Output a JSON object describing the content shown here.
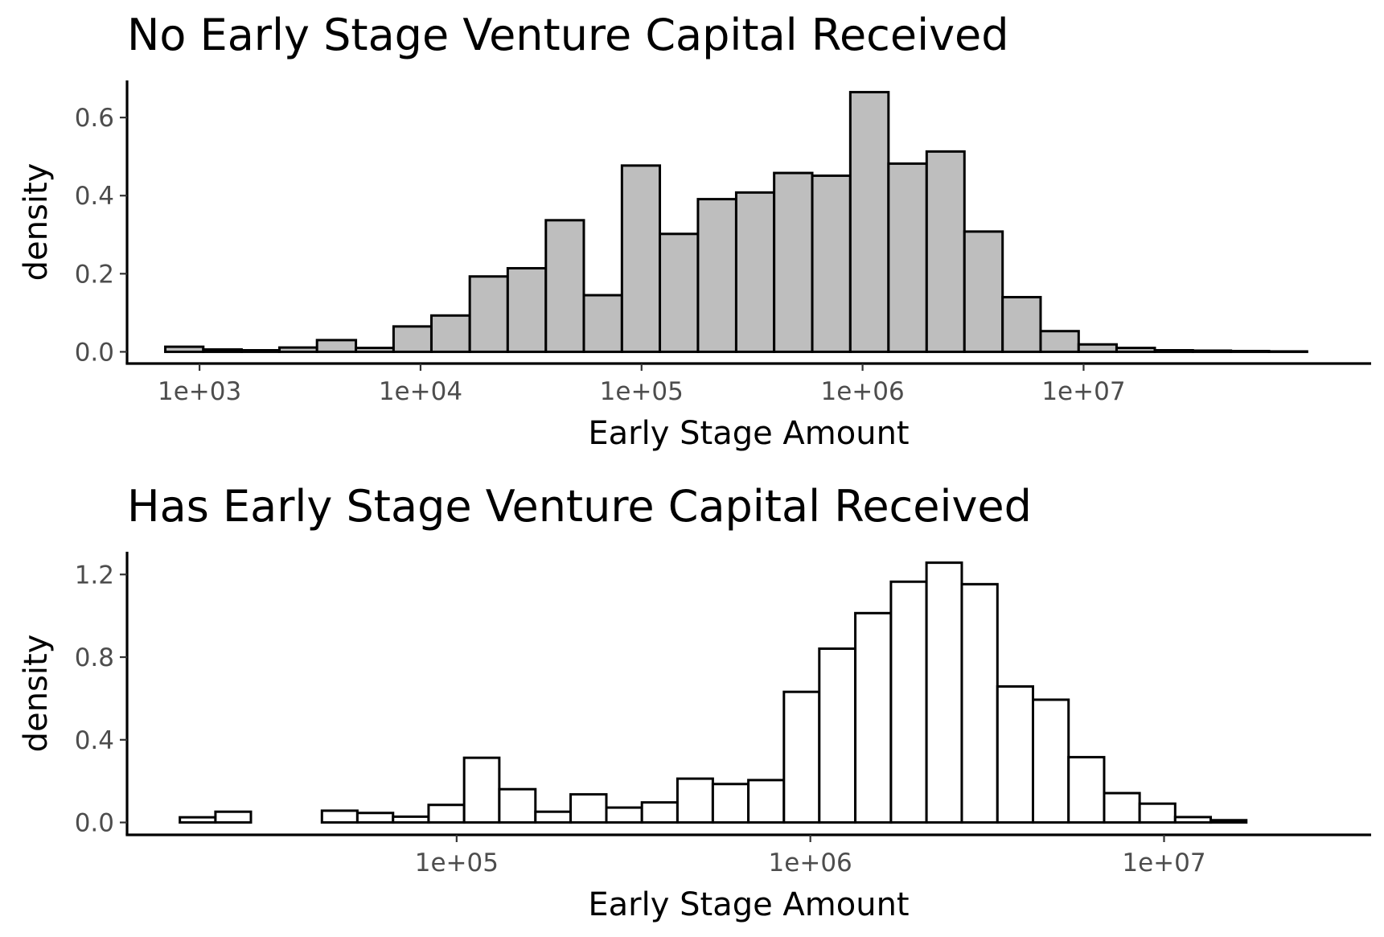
{
  "chart_data": [
    {
      "type": "bar",
      "title": "No Early Stage Venture Capital Received",
      "xlabel": "Early Stage Amount",
      "ylabel": "density",
      "x_scale": "log10",
      "bar_color": "#bebebe",
      "edge_color": "#000000",
      "xlim": [
        470,
        200000000
      ],
      "ylim": [
        -0.03,
        0.695
      ],
      "x_ticks": [
        {
          "value": 1000,
          "label": "1e+03"
        },
        {
          "value": 10000,
          "label": "1e+04"
        },
        {
          "value": 100000,
          "label": "1e+05"
        },
        {
          "value": 1000000,
          "label": "1e+06"
        },
        {
          "value": 10000000,
          "label": "1e+07"
        }
      ],
      "y_ticks": [
        {
          "value": 0.0,
          "label": "0.0"
        },
        {
          "value": 0.2,
          "label": "0.2"
        },
        {
          "value": 0.4,
          "label": "0.4"
        },
        {
          "value": 0.6,
          "label": "0.6"
        }
      ],
      "bins": [
        {
          "x0": 700,
          "x1": 1040,
          "density": 0.013
        },
        {
          "x0": 1040,
          "x1": 1550,
          "density": 0.006
        },
        {
          "x0": 1550,
          "x1": 2300,
          "density": 0.004
        },
        {
          "x0": 2300,
          "x1": 3400,
          "density": 0.011
        },
        {
          "x0": 3400,
          "x1": 5100,
          "density": 0.03
        },
        {
          "x0": 5100,
          "x1": 7550,
          "density": 0.01
        },
        {
          "x0": 7550,
          "x1": 11200,
          "density": 0.065
        },
        {
          "x0": 11200,
          "x1": 16700,
          "density": 0.093
        },
        {
          "x0": 16700,
          "x1": 24800,
          "density": 0.193
        },
        {
          "x0": 24800,
          "x1": 36900,
          "density": 0.214
        },
        {
          "x0": 36900,
          "x1": 54800,
          "density": 0.337
        },
        {
          "x0": 54800,
          "x1": 81500,
          "density": 0.145
        },
        {
          "x0": 81500,
          "x1": 121000,
          "density": 0.477
        },
        {
          "x0": 121000,
          "x1": 180000,
          "density": 0.302
        },
        {
          "x0": 180000,
          "x1": 268000,
          "density": 0.391
        },
        {
          "x0": 268000,
          "x1": 398000,
          "density": 0.408
        },
        {
          "x0": 398000,
          "x1": 592000,
          "density": 0.458
        },
        {
          "x0": 592000,
          "x1": 880000,
          "density": 0.451
        },
        {
          "x0": 880000,
          "x1": 1310000,
          "density": 0.665
        },
        {
          "x0": 1310000,
          "x1": 1950000,
          "density": 0.482
        },
        {
          "x0": 1950000,
          "x1": 2890000,
          "density": 0.513
        },
        {
          "x0": 2890000,
          "x1": 4300000,
          "density": 0.308
        },
        {
          "x0": 4300000,
          "x1": 6390000,
          "density": 0.14
        },
        {
          "x0": 6390000,
          "x1": 9500000,
          "density": 0.053
        },
        {
          "x0": 9500000,
          "x1": 14100000,
          "density": 0.019
        },
        {
          "x0": 14100000,
          "x1": 21000000,
          "density": 0.01
        },
        {
          "x0": 21000000,
          "x1": 31200000,
          "density": 0.004
        },
        {
          "x0": 31200000,
          "x1": 46400000,
          "density": 0.003
        },
        {
          "x0": 46400000,
          "x1": 69000000,
          "density": 0.002
        },
        {
          "x0": 69000000,
          "x1": 102600000,
          "density": 0.001
        }
      ]
    },
    {
      "type": "bar",
      "title": "Has Early Stage Venture Capital Received",
      "xlabel": "Early Stage Amount",
      "ylabel": "density",
      "x_scale": "log10",
      "bar_color": "#ffffff",
      "edge_color": "#000000",
      "xlim": [
        11700,
        38500000
      ],
      "ylim": [
        -0.06,
        1.31
      ],
      "x_ticks": [
        {
          "value": 100000,
          "label": "1e+05"
        },
        {
          "value": 1000000,
          "label": "1e+06"
        },
        {
          "value": 10000000,
          "label": "1e+07"
        }
      ],
      "y_ticks": [
        {
          "value": 0.0,
          "label": "0.0"
        },
        {
          "value": 0.4,
          "label": "0.4"
        },
        {
          "value": 0.8,
          "label": "0.8"
        },
        {
          "value": 1.2,
          "label": "1.2"
        }
      ],
      "bins": [
        {
          "x0": 16500,
          "x1": 20800,
          "density": 0.025
        },
        {
          "x0": 20800,
          "x1": 26200,
          "density": 0.052
        },
        {
          "x0": 26200,
          "x1": 33000,
          "density": 0.0
        },
        {
          "x0": 33000,
          "x1": 41600,
          "density": 0.0
        },
        {
          "x0": 41600,
          "x1": 52400,
          "density": 0.057
        },
        {
          "x0": 52400,
          "x1": 66100,
          "density": 0.046
        },
        {
          "x0": 66100,
          "x1": 83300,
          "density": 0.028
        },
        {
          "x0": 83300,
          "x1": 105000,
          "density": 0.085
        },
        {
          "x0": 105000,
          "x1": 132000,
          "density": 0.313
        },
        {
          "x0": 132000,
          "x1": 167000,
          "density": 0.161
        },
        {
          "x0": 167000,
          "x1": 210000,
          "density": 0.052
        },
        {
          "x0": 210000,
          "x1": 265000,
          "density": 0.136
        },
        {
          "x0": 265000,
          "x1": 334000,
          "density": 0.072
        },
        {
          "x0": 334000,
          "x1": 421000,
          "density": 0.097
        },
        {
          "x0": 421000,
          "x1": 530000,
          "density": 0.212
        },
        {
          "x0": 530000,
          "x1": 668000,
          "density": 0.186
        },
        {
          "x0": 668000,
          "x1": 842000,
          "density": 0.205
        },
        {
          "x0": 842000,
          "x1": 1060000,
          "density": 0.632
        },
        {
          "x0": 1060000,
          "x1": 1340000,
          "density": 0.841
        },
        {
          "x0": 1340000,
          "x1": 1690000,
          "density": 1.013
        },
        {
          "x0": 1690000,
          "x1": 2130000,
          "density": 1.165
        },
        {
          "x0": 2130000,
          "x1": 2680000,
          "density": 1.257
        },
        {
          "x0": 2680000,
          "x1": 3380000,
          "density": 1.153
        },
        {
          "x0": 3380000,
          "x1": 4260000,
          "density": 0.658
        },
        {
          "x0": 4260000,
          "x1": 5370000,
          "density": 0.594
        },
        {
          "x0": 5370000,
          "x1": 6770000,
          "density": 0.316
        },
        {
          "x0": 6770000,
          "x1": 8530000,
          "density": 0.142
        },
        {
          "x0": 8530000,
          "x1": 10750000,
          "density": 0.091
        },
        {
          "x0": 10750000,
          "x1": 13550000,
          "density": 0.026
        },
        {
          "x0": 13550000,
          "x1": 17080000,
          "density": 0.011
        }
      ]
    }
  ]
}
